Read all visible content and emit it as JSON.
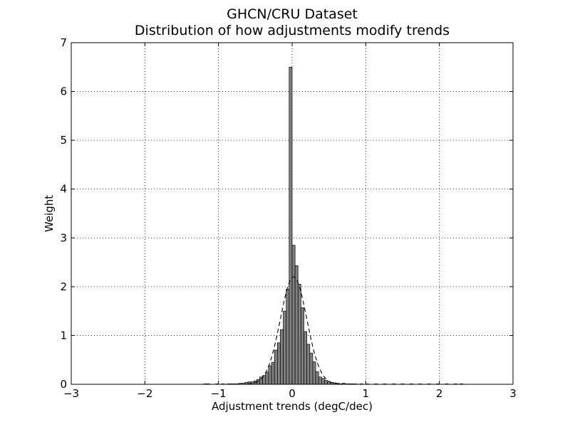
{
  "chart_data": {
    "type": "bar",
    "title": "GHCN/CRU Dataset",
    "subtitle": "Distribution of how adjustments modify trends",
    "xlabel": "Adjustment trends (degC/dec)",
    "ylabel": "Weight",
    "xlim": [
      -3,
      3
    ],
    "ylim": [
      0,
      7
    ],
    "grid": true,
    "xticks": [
      -3,
      -2,
      -1,
      0,
      1,
      2,
      3
    ],
    "xtick_labels": [
      "−3",
      "−2",
      "−1",
      "0",
      "1",
      "2",
      "3"
    ],
    "yticks": [
      0,
      1,
      2,
      3,
      4,
      5,
      6,
      7
    ],
    "ytick_labels": [
      "0",
      "1",
      "2",
      "3",
      "4",
      "5",
      "6",
      "7"
    ],
    "histogram": {
      "bin_width": 0.04,
      "bin_left_edges": [
        -1.2,
        -1.16,
        -1.12,
        -1.08,
        -1.04,
        -1.0,
        -0.96,
        -0.92,
        -0.88,
        -0.84,
        -0.8,
        -0.76,
        -0.72,
        -0.68,
        -0.64,
        -0.6,
        -0.56,
        -0.52,
        -0.48,
        -0.44,
        -0.4,
        -0.36,
        -0.32,
        -0.28,
        -0.24,
        -0.2,
        -0.16,
        -0.12,
        -0.08,
        -0.04,
        0.0,
        0.04,
        0.08,
        0.12,
        0.16,
        0.2,
        0.24,
        0.28,
        0.32,
        0.36,
        0.4,
        0.44,
        0.48,
        0.52,
        0.56,
        0.6,
        0.64,
        0.68,
        0.72,
        0.76,
        0.8,
        0.84,
        0.88,
        0.92,
        0.96,
        1.0
      ],
      "values": [
        0.01,
        0.01,
        0.0,
        0.0,
        0.01,
        0.0,
        0.01,
        0.0,
        0.01,
        0.01,
        0.01,
        0.01,
        0.02,
        0.02,
        0.04,
        0.05,
        0.05,
        0.07,
        0.1,
        0.15,
        0.18,
        0.25,
        0.38,
        0.45,
        0.7,
        0.85,
        1.12,
        1.5,
        1.95,
        6.5,
        2.85,
        2.43,
        2.05,
        1.57,
        1.08,
        0.82,
        0.64,
        0.46,
        0.26,
        0.15,
        0.12,
        0.08,
        0.05,
        0.04,
        0.03,
        0.02,
        0.01,
        0.02,
        0.01,
        0.01,
        0.01,
        0.01,
        0.0,
        0.01,
        0.0,
        0.01
      ]
    },
    "sparse_tail_bars": {
      "x": [
        1.12,
        1.24,
        1.36,
        1.48,
        1.6,
        1.72,
        1.84,
        1.96,
        2.08,
        2.2,
        2.28
      ],
      "values": [
        0.01,
        0.01,
        0.01,
        0.01,
        0.01,
        0.01,
        0.01,
        0.01,
        0.01,
        0.01,
        0.01
      ]
    },
    "fit_curve": {
      "kind": "gaussian",
      "mean": 0.02,
      "sigma": 0.18,
      "peak": 2.2
    }
  }
}
